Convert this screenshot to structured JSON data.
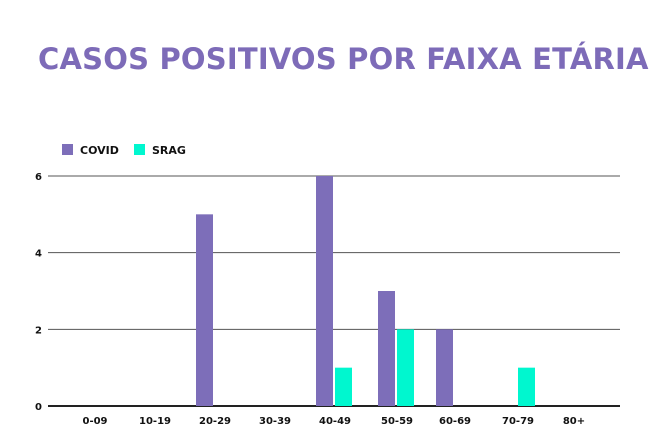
{
  "chart_data": {
    "type": "bar",
    "title": "CASOS POSITIVOS POR FAIXA ETÁRIA",
    "xlabel": "",
    "ylabel": "",
    "categories": [
      "0-09",
      "10-19",
      "20-29",
      "30-39",
      "40-49",
      "50-59",
      "60-69",
      "70-79",
      "80+"
    ],
    "series": [
      {
        "name": "COVID",
        "color": "#7d6eb9",
        "values": [
          0,
          0,
          5,
          0,
          6,
          3,
          2,
          0,
          0
        ]
      },
      {
        "name": "SRAG",
        "color": "#00f7cf",
        "values": [
          0,
          0,
          0,
          0,
          1,
          2,
          0,
          1,
          0
        ]
      }
    ],
    "ylim": [
      0,
      6
    ],
    "yticks": [
      0,
      2,
      4,
      6
    ],
    "grid": true,
    "legend": "top-left"
  }
}
